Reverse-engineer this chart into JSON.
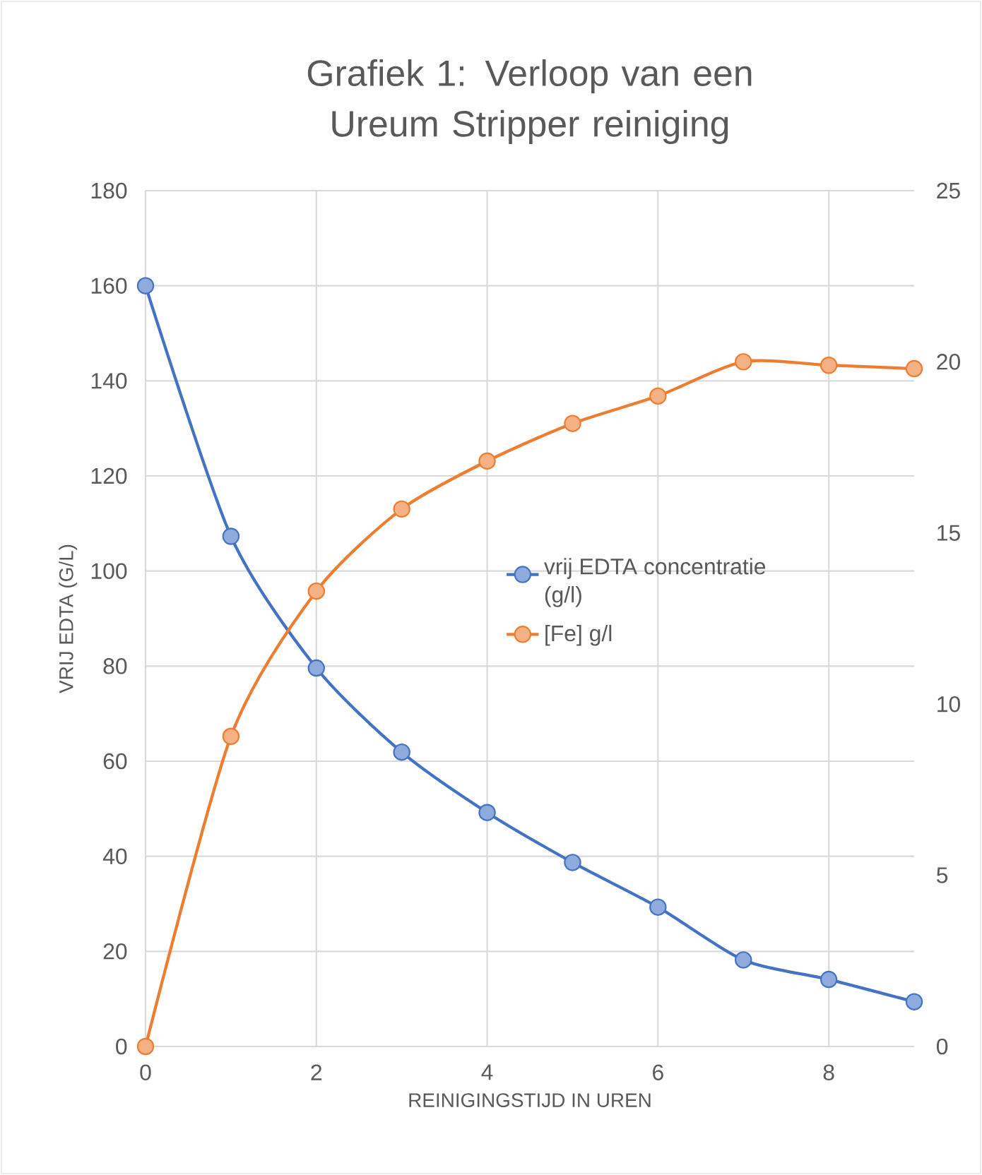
{
  "chart_data": {
    "type": "line",
    "title": "Grafiek 1: Verloop van een Ureum Stripper reiniging",
    "xlabel": "REINIGINGSTIJD IN UREN",
    "ylabel": "VRIJ EDTA (G/L)",
    "x": [
      0,
      1,
      2,
      3,
      4,
      5,
      6,
      7,
      8,
      9
    ],
    "series": [
      {
        "name": "vrij EDTA concentratie (g/l)",
        "color": "#4472c4",
        "values": [
          160,
          107.3,
          79.6,
          61.9,
          49.2,
          38.7,
          29.3,
          18.2,
          14.1,
          9.4
        ]
      },
      {
        "name": "[Fe] g/l",
        "color": "#ed7d31",
        "axis": "y2",
        "values": [
          0,
          9.06,
          13.3,
          15.7,
          17.1,
          18.2,
          19.0,
          20.0,
          19.9,
          19.8
        ]
      }
    ],
    "xlim": [
      0,
      9
    ],
    "xticks": [
      0,
      2,
      4,
      6,
      8
    ],
    "ylim": [
      0,
      180
    ],
    "yticks": [
      0,
      20,
      40,
      60,
      80,
      100,
      120,
      140,
      160,
      180
    ],
    "y2lim": [
      0,
      25
    ],
    "y2ticks": [
      0,
      5,
      10,
      15,
      20,
      25
    ],
    "grid": true,
    "legend": "right",
    "marker": "circle",
    "line_style": "solid"
  }
}
